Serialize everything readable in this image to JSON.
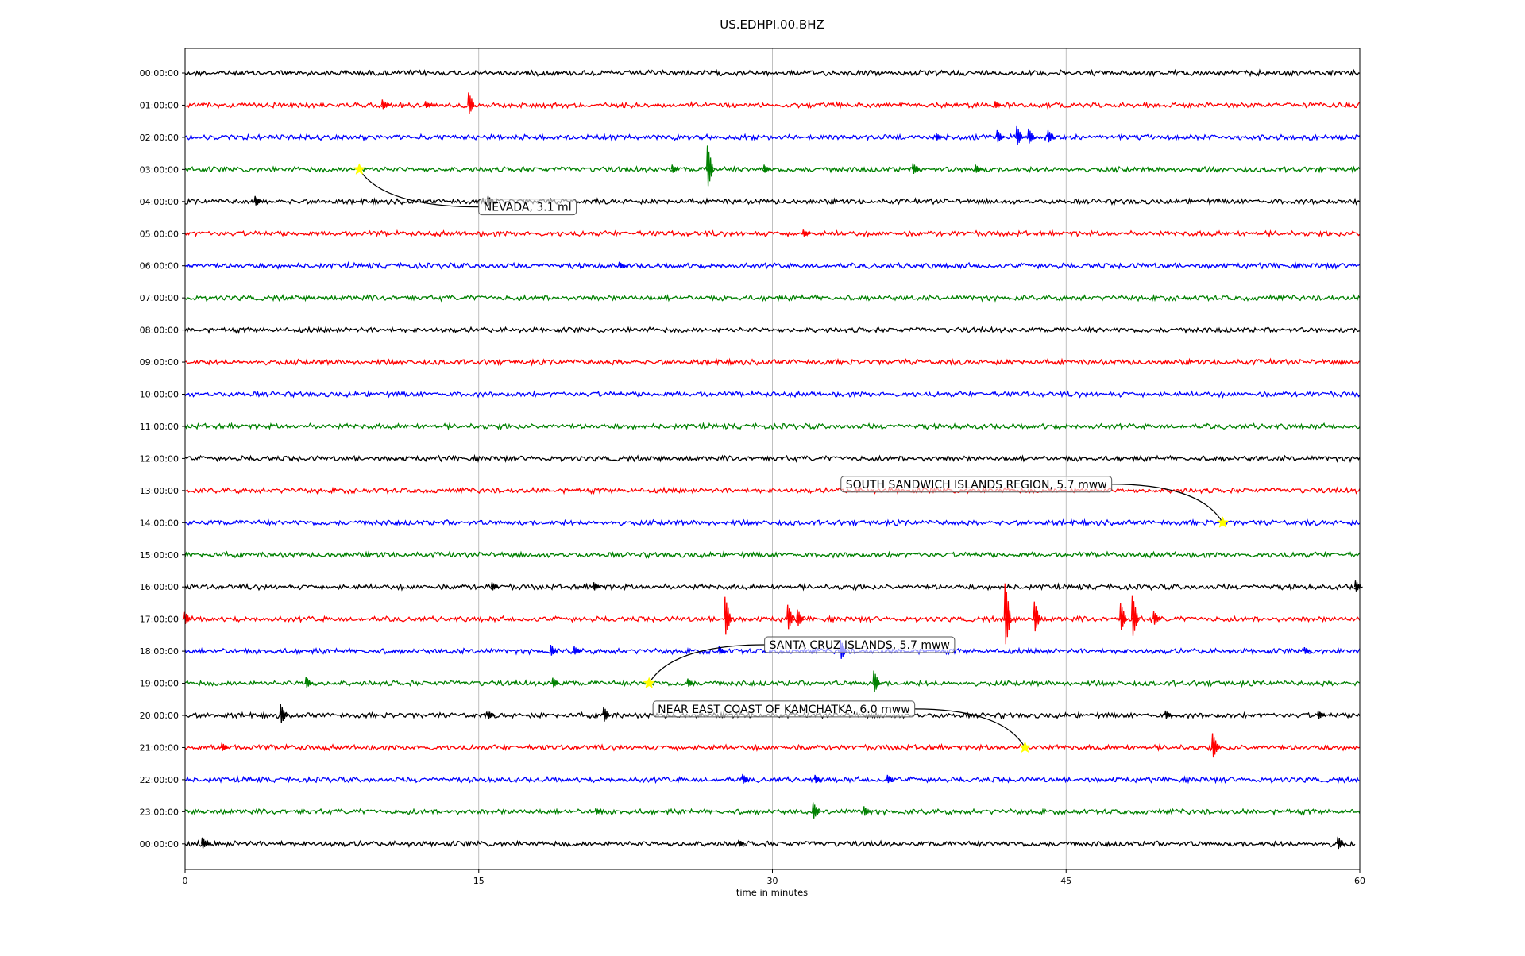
{
  "chart_data": {
    "type": "line",
    "title": "US.EDHPI.00.BHZ",
    "xlabel": "time in minutes",
    "ylabel": "",
    "xlim": [
      0,
      60
    ],
    "x_ticks": [
      "0",
      "15",
      "30",
      "45",
      "60"
    ],
    "grid": "vertical lines at 15, 30, 45",
    "trace_colors": [
      "#000000",
      "#ff0000",
      "#0000ff",
      "#008000"
    ],
    "star_color": "#ffff00",
    "row_labels": [
      "00:00:00",
      "01:00:00",
      "02:00:00",
      "03:00:00",
      "04:00:00",
      "05:00:00",
      "06:00:00",
      "07:00:00",
      "08:00:00",
      "09:00:00",
      "10:00:00",
      "11:00:00",
      "12:00:00",
      "13:00:00",
      "14:00:00",
      "15:00:00",
      "16:00:00",
      "17:00:00",
      "18:00:00",
      "19:00:00",
      "20:00:00",
      "21:00:00",
      "22:00:00",
      "23:00:00",
      "00:00:00"
    ],
    "events": [
      {
        "label": "NEVADA, 3.1 ml",
        "row": 3,
        "minute": 8.9
      },
      {
        "label": "SOUTH SANDWICH ISLANDS REGION, 5.7 mww",
        "row": 14,
        "minute": 53.0
      },
      {
        "label": "SANTA CRUZ ISLANDS, 5.7 mww",
        "row": 19,
        "minute": 23.7
      },
      {
        "label": "NEAR EAST COAST OF KAMCHATKA, 6.0 mww",
        "row": 21,
        "minute": 42.9
      }
    ],
    "spikes": [
      {
        "row": 1,
        "minute": 10.2,
        "amp": 7
      },
      {
        "row": 1,
        "minute": 14.6,
        "amp": 16
      },
      {
        "row": 1,
        "minute": 12.4,
        "amp": 5
      },
      {
        "row": 1,
        "minute": 41.5,
        "amp": 5
      },
      {
        "row": 2,
        "minute": 41.6,
        "amp": 9
      },
      {
        "row": 2,
        "minute": 42.6,
        "amp": 14
      },
      {
        "row": 2,
        "minute": 43.2,
        "amp": 11
      },
      {
        "row": 2,
        "minute": 44.2,
        "amp": 9
      },
      {
        "row": 2,
        "minute": 38.5,
        "amp": 5
      },
      {
        "row": 3,
        "minute": 26.8,
        "amp": 30
      },
      {
        "row": 3,
        "minute": 25.0,
        "amp": 6
      },
      {
        "row": 3,
        "minute": 29.7,
        "amp": 6
      },
      {
        "row": 3,
        "minute": 37.3,
        "amp": 8
      },
      {
        "row": 3,
        "minute": 40.5,
        "amp": 6
      },
      {
        "row": 4,
        "minute": 3.7,
        "amp": 7
      },
      {
        "row": 4,
        "minute": 15.6,
        "amp": 7
      },
      {
        "row": 5,
        "minute": 31.7,
        "amp": 5
      },
      {
        "row": 6,
        "minute": 22.3,
        "amp": 5
      },
      {
        "row": 16,
        "minute": 15.8,
        "amp": 6
      },
      {
        "row": 16,
        "minute": 21.0,
        "amp": 6
      },
      {
        "row": 16,
        "minute": 59.9,
        "amp": 8
      },
      {
        "row": 17,
        "minute": 0.1,
        "amp": 9
      },
      {
        "row": 17,
        "minute": 27.7,
        "amp": 28
      },
      {
        "row": 17,
        "minute": 30.9,
        "amp": 18
      },
      {
        "row": 17,
        "minute": 31.4,
        "amp": 12
      },
      {
        "row": 17,
        "minute": 42.0,
        "amp": 45
      },
      {
        "row": 17,
        "minute": 43.5,
        "amp": 22
      },
      {
        "row": 17,
        "minute": 47.9,
        "amp": 20
      },
      {
        "row": 17,
        "minute": 48.5,
        "amp": 30
      },
      {
        "row": 17,
        "minute": 49.6,
        "amp": 10
      },
      {
        "row": 18,
        "minute": 18.8,
        "amp": 8
      },
      {
        "row": 18,
        "minute": 20.0,
        "amp": 6
      },
      {
        "row": 18,
        "minute": 27.4,
        "amp": 6
      },
      {
        "row": 18,
        "minute": 33.6,
        "amp": 14
      },
      {
        "row": 18,
        "minute": 57.3,
        "amp": 5
      },
      {
        "row": 19,
        "minute": 6.3,
        "amp": 8
      },
      {
        "row": 19,
        "minute": 18.9,
        "amp": 7
      },
      {
        "row": 19,
        "minute": 25.8,
        "amp": 6
      },
      {
        "row": 19,
        "minute": 35.3,
        "amp": 16
      },
      {
        "row": 20,
        "minute": 5.0,
        "amp": 14
      },
      {
        "row": 20,
        "minute": 15.6,
        "amp": 6
      },
      {
        "row": 20,
        "minute": 21.5,
        "amp": 11
      },
      {
        "row": 20,
        "minute": 50.2,
        "amp": 6
      },
      {
        "row": 20,
        "minute": 58.0,
        "amp": 6
      },
      {
        "row": 21,
        "minute": 2.0,
        "amp": 6
      },
      {
        "row": 21,
        "minute": 52.6,
        "amp": 18
      },
      {
        "row": 22,
        "minute": 28.6,
        "amp": 7
      },
      {
        "row": 22,
        "minute": 32.3,
        "amp": 6
      },
      {
        "row": 22,
        "minute": 36.0,
        "amp": 6
      },
      {
        "row": 23,
        "minute": 32.2,
        "amp": 12
      },
      {
        "row": 23,
        "minute": 34.8,
        "amp": 7
      },
      {
        "row": 23,
        "minute": 21.1,
        "amp": 5
      },
      {
        "row": 24,
        "minute": 1.0,
        "amp": 8
      },
      {
        "row": 24,
        "minute": 28.4,
        "amp": 5
      },
      {
        "row": 24,
        "minute": 59.0,
        "amp": 9
      }
    ]
  }
}
